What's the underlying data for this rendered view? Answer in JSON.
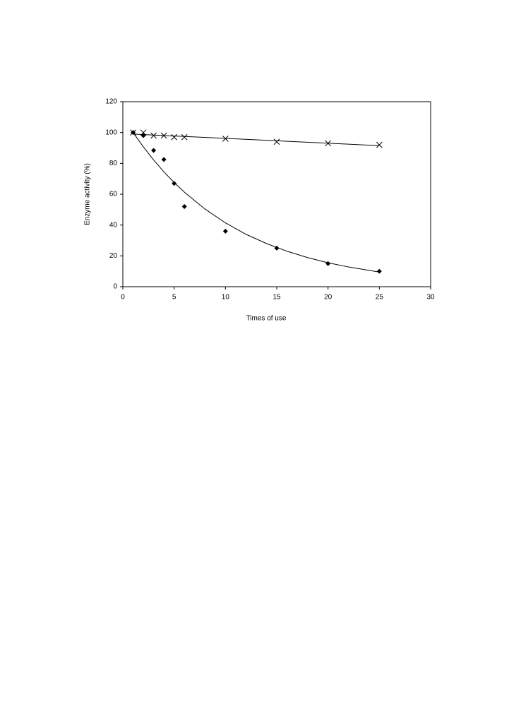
{
  "chart_data": {
    "type": "scatter",
    "xlabel": "Times of use",
    "ylabel": "Enzyme activity (%)",
    "xlim": [
      0,
      30
    ],
    "xticks": [
      0,
      5,
      10,
      15,
      20,
      25,
      30
    ],
    "ylim": [
      0,
      120
    ],
    "yticks": [
      0,
      20,
      40,
      60,
      80,
      100,
      120
    ],
    "grid": false,
    "series": [
      {
        "marker": "x",
        "color": "#000000",
        "x": [
          1,
          2,
          3,
          4,
          5,
          6,
          10,
          15,
          20,
          25
        ],
        "values": [
          100,
          100,
          98,
          98,
          97,
          97,
          96,
          94,
          93,
          92
        ],
        "fit_x": [
          1,
          25
        ],
        "fit_values": [
          99,
          91.5
        ]
      },
      {
        "marker": "diamond",
        "color": "#000000",
        "x": [
          1,
          2,
          3,
          4,
          5,
          6,
          10,
          15,
          20,
          25
        ],
        "values": [
          100,
          98,
          88.4,
          82.5,
          67,
          52,
          36,
          25,
          15,
          10
        ],
        "fit_x": [
          1,
          2,
          3,
          4,
          5,
          6,
          8,
          10,
          12,
          14,
          16,
          18,
          20,
          22,
          25
        ],
        "fit_values": [
          100,
          90.7,
          82.2,
          74.5,
          67.6,
          61.3,
          50.4,
          41.4,
          34,
          28,
          23,
          18.9,
          15.5,
          12.8,
          9.5
        ]
      }
    ]
  }
}
